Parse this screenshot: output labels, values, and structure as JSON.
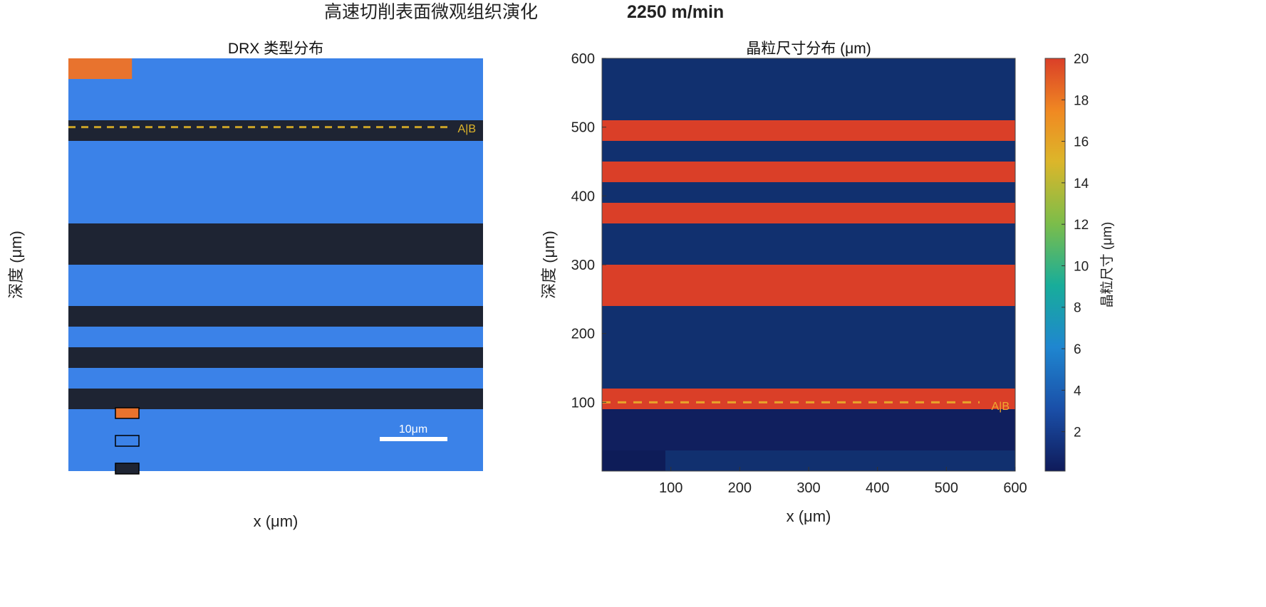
{
  "figure_title": "高速切削表面微观组织演化",
  "figure_speed": "2250 m/min",
  "chart_data": [
    {
      "type": "heatmap",
      "title": "DRX 类型分布",
      "xlabel": "x (μm)",
      "ylabel": "深度 (μm)",
      "xlim": [
        0,
        600
      ],
      "ylim": [
        0,
        600
      ],
      "colors": {
        "background": "#3b82e8",
        "dark": "#1e2433",
        "orange": "#e8732e"
      },
      "bands_dark": [
        [
          90,
          120
        ],
        [
          150,
          180
        ],
        [
          210,
          240
        ],
        [
          300,
          360
        ],
        [
          480,
          510
        ]
      ],
      "orange_patch": {
        "x": [
          0,
          92
        ],
        "y": [
          570,
          600
        ]
      },
      "divider": {
        "depth": 500,
        "label": "A|B",
        "color": "#c9a227"
      },
      "legend_swatches": [
        "#e8732e",
        "#3b82e8",
        "#1e2433"
      ],
      "scale_bar_label": "10μm"
    },
    {
      "type": "heatmap",
      "title": "晶粒尺寸分布 (μm)",
      "xlabel": "x (μm)",
      "ylabel": "深度 (μm)",
      "xlim": [
        0,
        600
      ],
      "ylim": [
        0,
        600
      ],
      "xticks": [
        100,
        200,
        300,
        400,
        500,
        600
      ],
      "yticks": [
        100,
        200,
        300,
        400,
        500,
        600
      ],
      "regions": [
        {
          "x": [
            0,
            600
          ],
          "y": [
            0,
            600
          ],
          "value": 1.5,
          "color": "#11306f"
        },
        {
          "x": [
            0,
            600
          ],
          "y": [
            30,
            90
          ],
          "value": 0.8,
          "color": "#101f5e"
        },
        {
          "x": [
            0,
            92
          ],
          "y": [
            0,
            30
          ],
          "value": 0.6,
          "color": "#0e1c58"
        },
        {
          "x": [
            0,
            600
          ],
          "y": [
            90,
            120
          ],
          "value": 19,
          "color": "#da3f28"
        },
        {
          "x": [
            0,
            600
          ],
          "y": [
            240,
            300
          ],
          "value": 19,
          "color": "#da3f28"
        },
        {
          "x": [
            0,
            600
          ],
          "y": [
            360,
            390
          ],
          "value": 19,
          "color": "#da3f28"
        },
        {
          "x": [
            0,
            600
          ],
          "y": [
            420,
            450
          ],
          "value": 19,
          "color": "#da3f28"
        },
        {
          "x": [
            0,
            600
          ],
          "y": [
            480,
            510
          ],
          "value": 19,
          "color": "#da3f28"
        }
      ],
      "divider": {
        "depth": 100,
        "label": "A|B",
        "color": "#e8a22a"
      },
      "colorbar": {
        "label": "晶粒尺寸 (μm)",
        "range": [
          0.1,
          20
        ],
        "ticks": [
          2,
          4,
          6,
          8,
          10,
          12,
          14,
          16,
          18,
          20
        ],
        "colormap": "parula"
      }
    }
  ]
}
